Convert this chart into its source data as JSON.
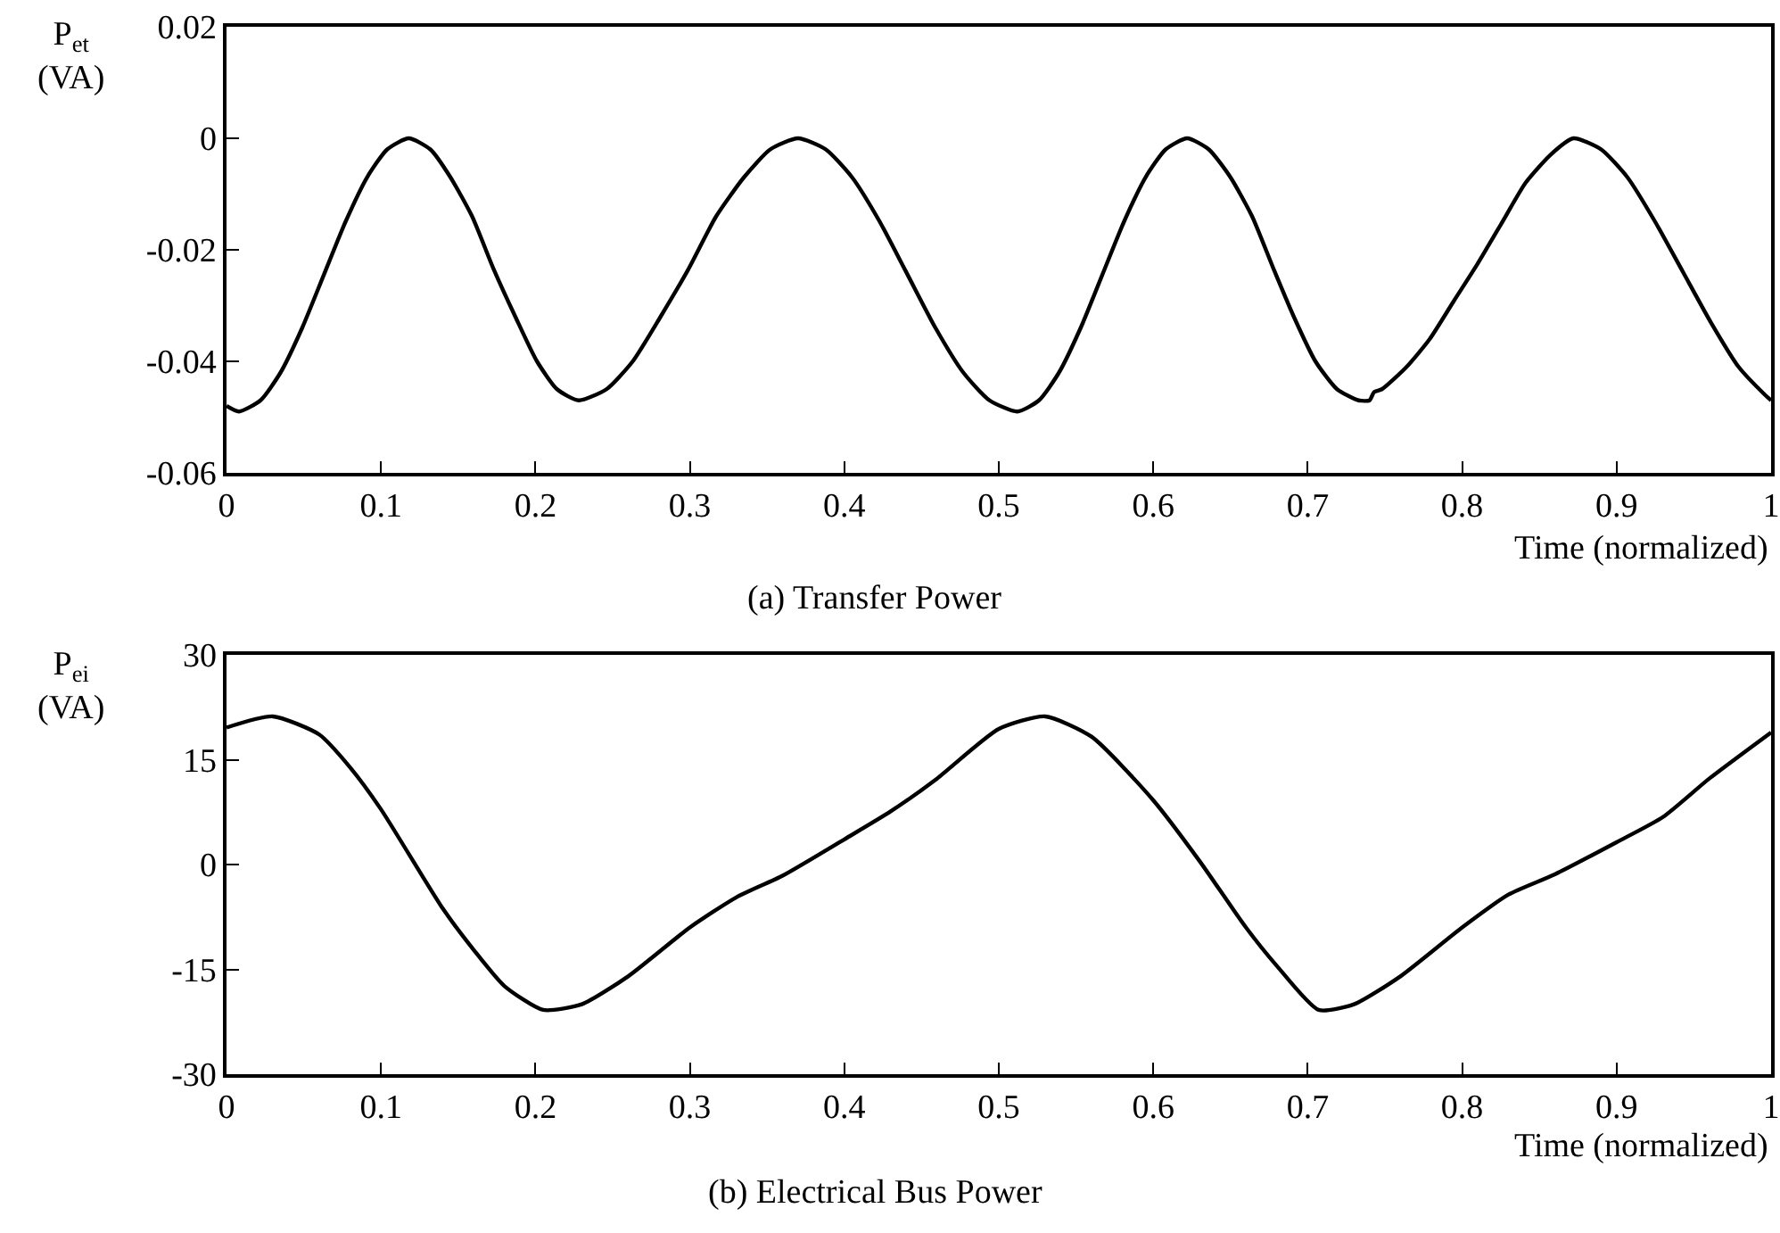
{
  "chart_data": [
    {
      "type": "line",
      "title": "(a) Transfer Power",
      "xlabel": "Time (normalized)",
      "ylabel": "P$_{et}$ (VA)",
      "xlim": [
        0,
        1
      ],
      "xticks": [
        0,
        0.1,
        0.2,
        0.3,
        0.4,
        0.5,
        0.6,
        0.7,
        0.8,
        0.9,
        1
      ],
      "ylim": [
        -0.06,
        0.02
      ],
      "yticks": [
        -0.06,
        -0.04,
        -0.02,
        0,
        0.02
      ],
      "grid": false,
      "marker": "none",
      "line_style": "solid",
      "series": [
        {
          "color": "#000000",
          "x": [
            0,
            0.008,
            0.022,
            0.035,
            0.049,
            0.063,
            0.077,
            0.091,
            0.104,
            0.118,
            0.132,
            0.145,
            0.159,
            0.173,
            0.187,
            0.201,
            0.214,
            0.228,
            0.246,
            0.263,
            0.281,
            0.299,
            0.317,
            0.335,
            0.352,
            0.37,
            0.388,
            0.405,
            0.423,
            0.441,
            0.459,
            0.477,
            0.494,
            0.512,
            0.526,
            0.539,
            0.553,
            0.567,
            0.581,
            0.595,
            0.608,
            0.622,
            0.636,
            0.65,
            0.664,
            0.678,
            0.691,
            0.705,
            0.719,
            0.733,
            0.74,
            0.743,
            0.748,
            0.764,
            0.779,
            0.795,
            0.81,
            0.826,
            0.841,
            0.857,
            0.872,
            0.89,
            0.907,
            0.925,
            0.943,
            0.961,
            0.979,
            0.996,
            1
          ],
          "values": [
            -0.048,
            -0.049,
            -0.047,
            -0.042,
            -0.034,
            -0.0245,
            -0.015,
            -0.007,
            -0.002,
            0,
            -0.002,
            -0.007,
            -0.014,
            -0.0235,
            -0.032,
            -0.04,
            -0.045,
            -0.047,
            -0.045,
            -0.04,
            -0.032,
            -0.0235,
            -0.014,
            -0.007,
            -0.002,
            0,
            -0.002,
            -0.007,
            -0.015,
            -0.0245,
            -0.034,
            -0.042,
            -0.047,
            -0.049,
            -0.047,
            -0.042,
            -0.034,
            -0.0245,
            -0.015,
            -0.007,
            -0.002,
            0,
            -0.002,
            -0.007,
            -0.014,
            -0.0235,
            -0.032,
            -0.04,
            -0.045,
            -0.047,
            -0.047,
            -0.0455,
            -0.045,
            -0.041,
            -0.036,
            -0.029,
            -0.0225,
            -0.015,
            -0.008,
            -0.003,
            0,
            -0.002,
            -0.007,
            -0.015,
            -0.024,
            -0.033,
            -0.041,
            -0.046,
            -0.047
          ]
        }
      ]
    },
    {
      "type": "line",
      "title": "(b) Electrical Bus Power",
      "xlabel": "Time (normalized)",
      "ylabel": "P$_{ei}$ (VA)",
      "xlim": [
        0,
        1
      ],
      "xticks": [
        0,
        0.1,
        0.2,
        0.3,
        0.4,
        0.5,
        0.6,
        0.7,
        0.8,
        0.9,
        1
      ],
      "ylim": [
        -30,
        30
      ],
      "yticks": [
        -30,
        -15,
        0,
        15,
        30
      ],
      "grid": false,
      "marker": "none",
      "line_style": "solid",
      "series": [
        {
          "color": "#000000",
          "x": [
            0,
            0.03,
            0.06,
            0.08,
            0.1,
            0.14,
            0.16,
            0.18,
            0.205,
            0.23,
            0.26,
            0.3,
            0.33,
            0.36,
            0.4,
            0.43,
            0.46,
            0.5,
            0.53,
            0.56,
            0.6,
            0.63,
            0.66,
            0.68,
            0.707,
            0.73,
            0.76,
            0.8,
            0.83,
            0.86,
            0.9,
            0.93,
            0.96,
            1
          ],
          "values": [
            19.6,
            21.2,
            18.6,
            13.9,
            7.9,
            -6.3,
            -12.2,
            -17.4,
            -20.8,
            -20,
            -16,
            -9,
            -4.7,
            -1.6,
            3.6,
            7.6,
            12.3,
            19.4,
            21.2,
            18.3,
            9.2,
            0.5,
            -9,
            -14.5,
            -20.8,
            -20,
            -16,
            -9,
            -4.3,
            -1.4,
            3.2,
            6.8,
            12.3,
            18.9
          ]
        }
      ]
    }
  ]
}
